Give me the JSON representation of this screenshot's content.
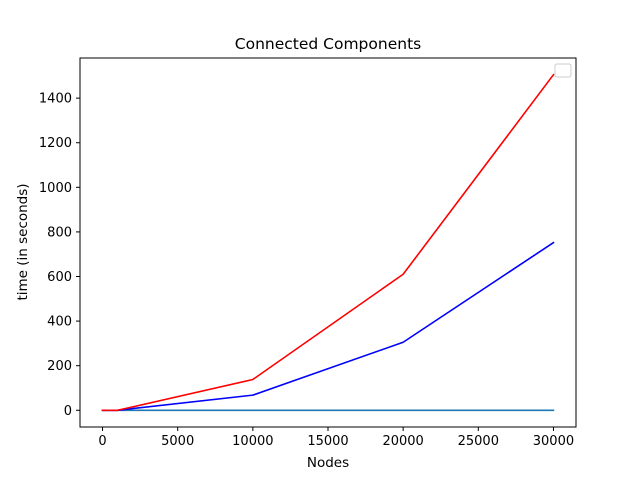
{
  "chart_data": {
    "type": "line",
    "title": "Connected Components",
    "xlabel": "Nodes",
    "ylabel": "time (in seconds)",
    "xlim": [
      -1500,
      31500
    ],
    "ylim": [
      -75,
      1580
    ],
    "x_ticks": [
      0,
      5000,
      10000,
      15000,
      20000,
      25000,
      30000
    ],
    "x_tick_labels": [
      "0",
      "5000",
      "10000",
      "15000",
      "20000",
      "25000",
      "30000"
    ],
    "y_ticks": [
      0,
      200,
      400,
      600,
      800,
      1000,
      1200,
      1400
    ],
    "y_tick_labels": [
      "0",
      "200",
      "400",
      "600",
      "800",
      "1000",
      "1200",
      "1400"
    ],
    "grid": false,
    "legend": {
      "placement": "top-right",
      "entries": []
    },
    "series": [
      {
        "color": "#1f77b4",
        "x": [
          0,
          1000,
          10000,
          20000,
          30000
        ],
        "y": [
          0,
          0,
          0,
          0,
          0
        ]
      },
      {
        "color": "#0000ff",
        "x": [
          0,
          1000,
          10000,
          20000,
          30000
        ],
        "y": [
          0,
          0,
          68,
          305,
          752
        ]
      },
      {
        "color": "#ff0000",
        "x": [
          0,
          1000,
          10000,
          20000,
          30000
        ],
        "y": [
          0,
          0,
          138,
          610,
          1505
        ]
      }
    ]
  }
}
